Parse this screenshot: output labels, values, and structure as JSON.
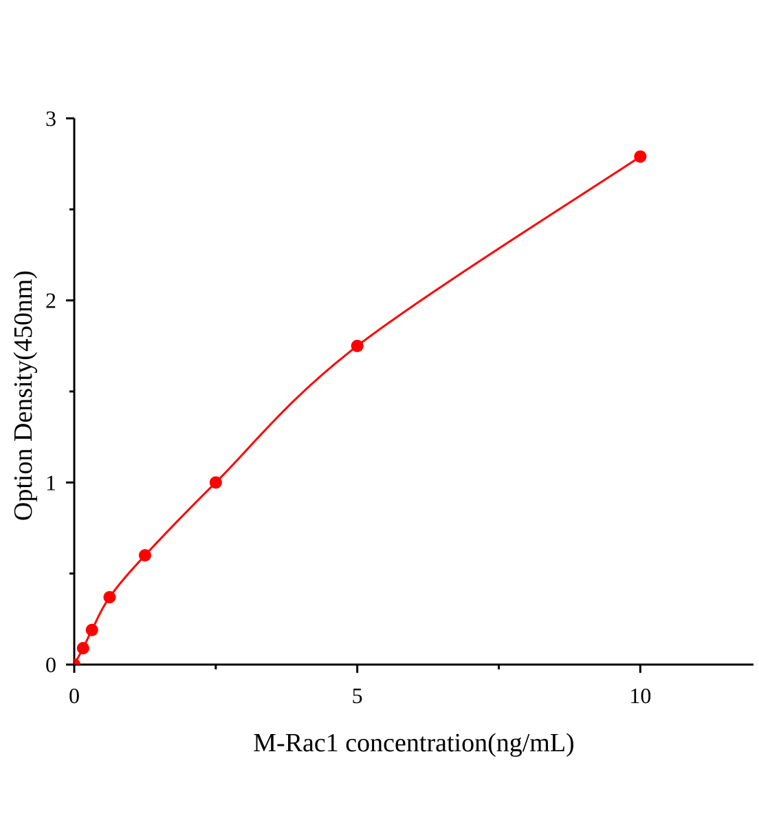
{
  "chart_data": {
    "type": "scatter",
    "title": "",
    "xlabel": "M-Rac1 concentration(ng/mL)",
    "ylabel": "Option Density(450nm)",
    "xlim": [
      0,
      12
    ],
    "ylim": [
      0,
      3
    ],
    "x_ticks": [
      0,
      5,
      10
    ],
    "x_tick_labels": [
      "0",
      "5",
      "10"
    ],
    "x_minor_ticks": [
      2.5,
      7.5
    ],
    "y_ticks": [
      0,
      1,
      2,
      3
    ],
    "y_tick_labels": [
      "0",
      "1",
      "2",
      "3"
    ],
    "y_minor_ticks": [
      0.5,
      1.5,
      2.5
    ],
    "grid": false,
    "series": [
      {
        "x": [
          0,
          0.156,
          0.3125,
          0.625,
          1.25,
          2.5,
          5,
          10
        ],
        "y": [
          0,
          0.09,
          0.19,
          0.37,
          0.6,
          1.0,
          1.75,
          2.79
        ],
        "fit_line": true
      }
    ],
    "colors": {
      "series": "#ff0000",
      "axes": "#000000"
    }
  }
}
